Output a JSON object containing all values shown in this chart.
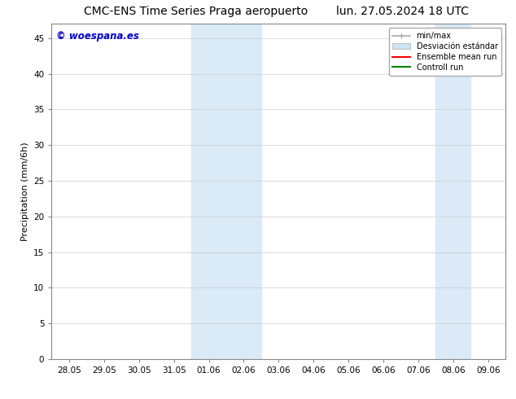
{
  "title_left": "CMC-ENS Time Series Praga aeropuerto",
  "title_right": "lun. 27.05.2024 18 UTC",
  "ylabel": "Precipitation (mm/6h)",
  "watermark": "© woespana.es",
  "background_color": "#ffffff",
  "plot_bg_color": "#ffffff",
  "shaded_regions": [
    {
      "xstart": 4,
      "xend": 6,
      "color": "#daeaf7"
    },
    {
      "xstart": 11,
      "xend": 12,
      "color": "#daeaf7"
    }
  ],
  "x_tick_labels": [
    "28.05",
    "29.05",
    "30.05",
    "31.05",
    "01.06",
    "02.06",
    "03.06",
    "04.06",
    "05.06",
    "06.06",
    "07.06",
    "08.06",
    "09.06"
  ],
  "ylim": [
    0,
    47
  ],
  "yticks": [
    0,
    5,
    10,
    15,
    20,
    25,
    30,
    35,
    40,
    45
  ],
  "title_fontsize": 10,
  "axis_label_fontsize": 8,
  "tick_fontsize": 7.5,
  "watermark_color": "#0000cc",
  "grid_color": "#cccccc",
  "legend_fontsize": 7,
  "minmax_color": "#aaaaaa",
  "std_color": "#cce5f5",
  "ensemble_color": "red",
  "control_color": "green"
}
